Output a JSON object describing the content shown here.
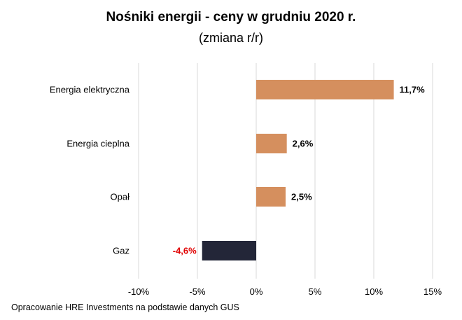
{
  "chart_data": {
    "type": "bar",
    "orientation": "horizontal",
    "title": "Nośniki energii - ceny w grudniu 2020 r.",
    "subtitle": "(zmiana r/r)",
    "categories": [
      "Energia elektryczna",
      "Energia cieplna",
      "Opał",
      "Gaz"
    ],
    "values": [
      11.7,
      2.6,
      2.5,
      -4.6
    ],
    "value_labels": [
      "11,7%",
      "2,6%",
      "2,5%",
      "-4,6%"
    ],
    "xlim": [
      -10,
      15
    ],
    "xticks": [
      -10,
      -5,
      0,
      5,
      10,
      15
    ],
    "xtick_labels": [
      "-10%",
      "-5%",
      "0%",
      "5%",
      "10%",
      "15%"
    ],
    "grid": "vertical",
    "legend": "none",
    "colors": {
      "positive_bar": "#D58F5E",
      "negative_bar": "#232638",
      "positive_label": "#000000",
      "negative_label": "#E00000",
      "grid": "#D9D9D9"
    }
  },
  "source": "Opracowanie HRE Investments na podstawie danych GUS"
}
